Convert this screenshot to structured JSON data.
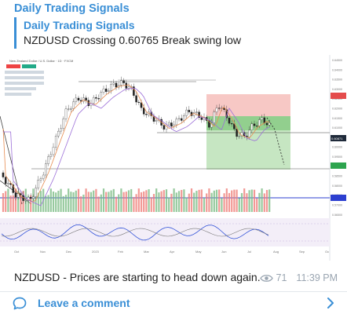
{
  "post": {
    "channel_title": "Daily Trading Signals",
    "reply_author": "Daily Trading Signals",
    "reply_text": "NZDUSD Crossing 0.60765 Break swing low",
    "caption": "NZDUSD - Prices are starting to head down again.",
    "views": "71",
    "time": "11:39 PM"
  },
  "footer": {
    "comment_label": "Leave a comment"
  },
  "chart": {
    "header_text": "New Zealand Dollar / U.S. Dollar · 1D · FXCM",
    "price_tag": "0.60871",
    "x_labels": [
      "Oct",
      "Nov",
      "Dec",
      "2023",
      "Feb",
      "Mar",
      "Apr",
      "May",
      "Jun",
      "Jul",
      "Aug",
      "Sep",
      "Oc"
    ],
    "y_labels": [
      "0.64500",
      "0.64000",
      "0.63500",
      "0.63000",
      "0.62500",
      "0.62000",
      "0.61500",
      "0.61000",
      "0.60500",
      "0.60000",
      "0.59500",
      "0.59000",
      "0.58500",
      "0.58000",
      "0.57500",
      "0.57000",
      "0.56500"
    ]
  },
  "colors": {
    "accent": "#3a8fd6",
    "stop_zone": "#f4b6b1",
    "target_zone": "#a7d9a2",
    "bull": "#7dbd86",
    "bear": "#ef7f7a"
  }
}
